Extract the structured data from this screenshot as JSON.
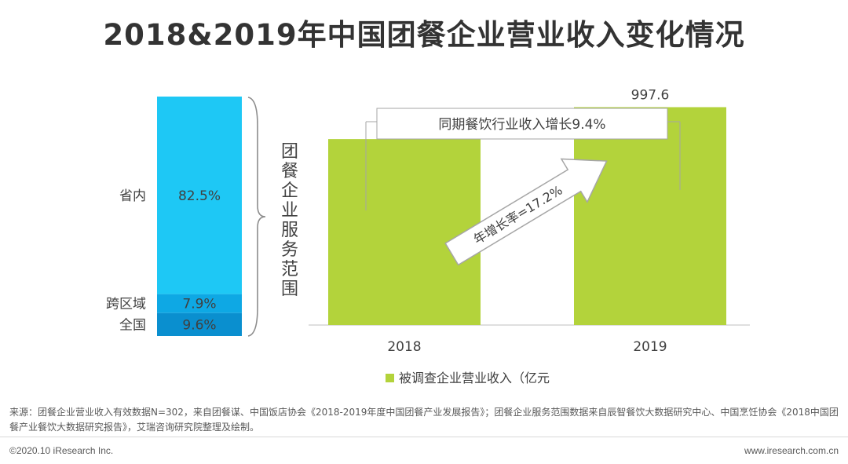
{
  "page": {
    "title": "2018&2019年中国团餐企业营业收入变化情况",
    "source": "来源：团餐企业营业收入有效数据N=302，来自团餐谋、中国饭店协会《2018-2019年度中国团餐产业发展报告》；团餐企业服务范围数据来自辰智餐饮大数据研究中心、中国烹饪协会《2018中国团餐产业餐饮大数据研究报告》，艾瑞咨询研究院整理及绘制。",
    "copyright": "©2020.10 iResearch Inc.",
    "website": "www.iresearch.com.cn"
  },
  "chart_data": [
    {
      "type": "bar",
      "stacked": true,
      "ylabel": "团餐企业服务范围",
      "segments": [
        {
          "label": "省内",
          "value": 82.5,
          "display": "82.5%",
          "color": "#1ec8f5"
        },
        {
          "label": "跨区域",
          "value": 7.9,
          "display": "7.9%",
          "color": "#0ea8e4"
        },
        {
          "label": "全国",
          "value": 9.6,
          "display": "9.6%",
          "color": "#0a8fcf"
        }
      ]
    },
    {
      "type": "bar",
      "categories": [
        "2018",
        "2019"
      ],
      "series": [
        {
          "name": "被调查企业营业收入（亿元",
          "values": [
            851.5,
            997.6
          ],
          "color": "#b3d33b"
        }
      ],
      "ylim": [
        0,
        1100
      ],
      "annotations": {
        "industry_growth": "同期餐饮行业收入增长9.4%",
        "yoy_growth": "年增长率=17.2%"
      }
    }
  ]
}
